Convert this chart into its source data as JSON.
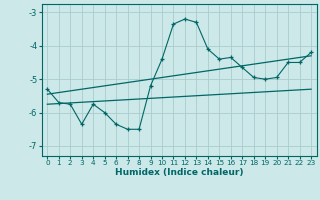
{
  "xlabel": "Humidex (Indice chaleur)",
  "background_color": "#cce8e8",
  "line_color": "#006666",
  "grid_color": "#b8d8d8",
  "xlim": [
    -0.5,
    23.5
  ],
  "ylim": [
    -7.3,
    -2.75
  ],
  "yticks": [
    -7,
    -6,
    -5,
    -4,
    -3
  ],
  "xticks": [
    0,
    1,
    2,
    3,
    4,
    5,
    6,
    7,
    8,
    9,
    10,
    11,
    12,
    13,
    14,
    15,
    16,
    17,
    18,
    19,
    20,
    21,
    22,
    23
  ],
  "main_x": [
    0,
    1,
    2,
    3,
    4,
    5,
    6,
    7,
    8,
    9,
    10,
    11,
    12,
    13,
    14,
    15,
    16,
    17,
    18,
    19,
    20,
    21,
    22,
    23
  ],
  "main_y": [
    -5.3,
    -5.7,
    -5.75,
    -6.35,
    -5.75,
    -6.0,
    -6.35,
    -6.5,
    -6.5,
    -5.2,
    -4.4,
    -3.35,
    -3.2,
    -3.3,
    -4.1,
    -4.4,
    -4.35,
    -4.65,
    -4.95,
    -5.0,
    -4.95,
    -4.5,
    -4.5,
    -4.2
  ],
  "trend1_x": [
    0,
    23
  ],
  "trend1_y": [
    -5.45,
    -4.3
  ],
  "trend2_x": [
    0,
    23
  ],
  "trend2_y": [
    -5.75,
    -5.3
  ]
}
